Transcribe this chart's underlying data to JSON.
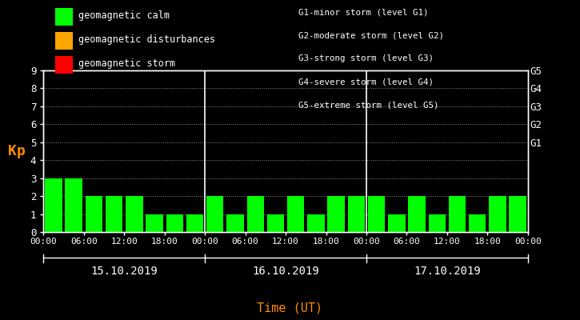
{
  "background_color": "#000000",
  "bar_color_calm": "#00ff00",
  "bar_color_disturbance": "#ffa500",
  "bar_color_storm": "#ff0000",
  "ylabel_color": "#ff8c00",
  "xlabel_color": "#ff8c00",
  "text_color": "#ffffff",
  "ylabel": "Kp",
  "xlabel": "Time (UT)",
  "ylim": [
    0,
    9
  ],
  "yticks": [
    0,
    1,
    2,
    3,
    4,
    5,
    6,
    7,
    8,
    9
  ],
  "right_labels": [
    "G5",
    "G4",
    "G3",
    "G2",
    "G1"
  ],
  "right_label_yticks": [
    9,
    8,
    7,
    6,
    5
  ],
  "days": [
    "15.10.2019",
    "16.10.2019",
    "17.10.2019"
  ],
  "kp_values": [
    [
      3,
      3,
      2,
      2,
      2,
      1,
      1,
      1
    ],
    [
      2,
      1,
      2,
      1,
      2,
      1,
      2,
      2
    ],
    [
      2,
      1,
      2,
      1,
      2,
      1,
      2,
      2
    ]
  ],
  "legend_items": [
    {
      "label": "geomagnetic calm",
      "color": "#00ff00"
    },
    {
      "label": "geomagnetic disturbances",
      "color": "#ffa500"
    },
    {
      "label": "geomagnetic storm",
      "color": "#ff0000"
    }
  ],
  "storm_legend_lines": [
    "G1-minor storm (level G1)",
    "G2-moderate storm (level G2)",
    "G3-strong storm (level G3)",
    "G4-severe storm (level G4)",
    "G5-extreme storm (level G5)"
  ],
  "n_bars_per_day": 8,
  "bar_width": 0.85,
  "hour_labels": [
    "00:00",
    "06:00",
    "12:00",
    "18:00"
  ]
}
